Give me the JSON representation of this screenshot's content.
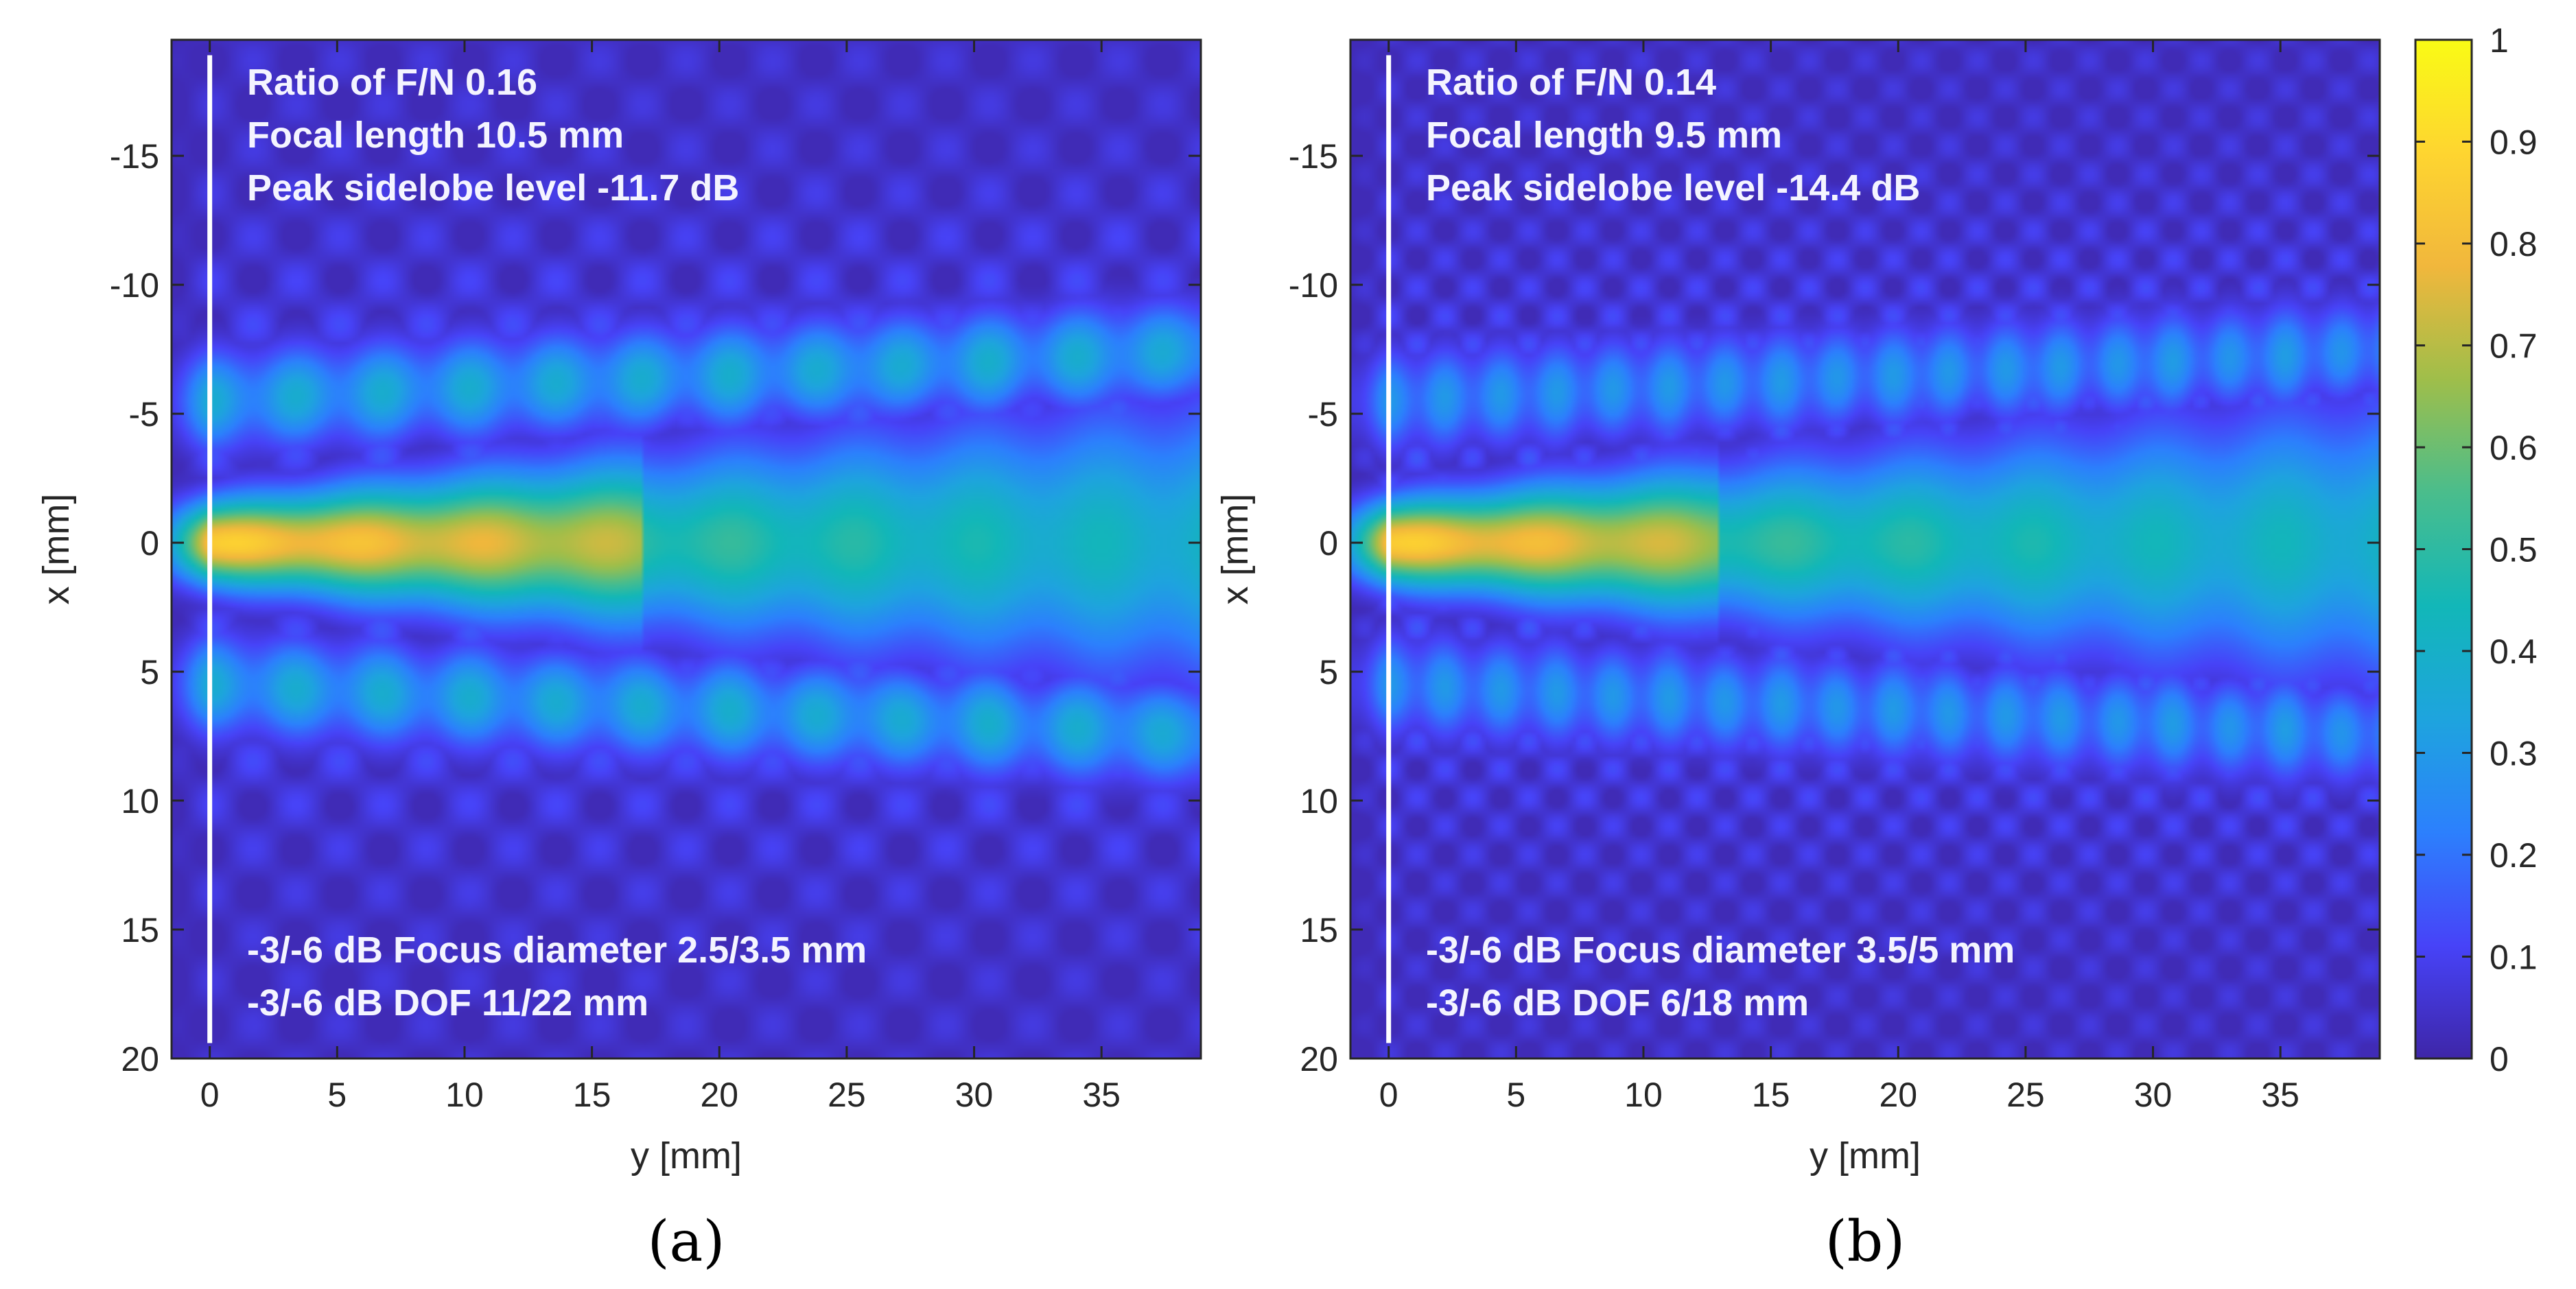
{
  "colormap": {
    "name": "parula",
    "stops": [
      "#3e26a8",
      "#4743f8",
      "#2c80fd",
      "#1ea4de",
      "#12b7b8",
      "#4abd8c",
      "#9fbe4a",
      "#f1b73c",
      "#fed530",
      "#f9fb15"
    ]
  },
  "colorbar": {
    "ticks": [
      "0",
      "0.1",
      "0.2",
      "0.3",
      "0.4",
      "0.5",
      "0.6",
      "0.7",
      "0.8",
      "0.9",
      "1"
    ],
    "range": [
      0,
      1
    ]
  },
  "chart_data": [
    {
      "type": "heatmap",
      "panel_label": "(a)",
      "xlabel": "y [mm]",
      "ylabel": "x [mm]",
      "x_range": [
        -1.5,
        38.9
      ],
      "y_range": [
        20,
        -19.5
      ],
      "xticks": [
        0,
        5,
        10,
        15,
        20,
        25,
        30,
        35
      ],
      "xtick_labels": [
        "0",
        "5",
        "10",
        "15",
        "20",
        "25",
        "30",
        "35"
      ],
      "yticks": [
        -15,
        -10,
        -5,
        0,
        5,
        10,
        15,
        20
      ],
      "ytick_labels": [
        "-15",
        "-10",
        "-5",
        "0",
        "5",
        "10",
        "15",
        "20"
      ],
      "value_range": [
        0,
        1
      ],
      "peak_value": 0.85,
      "focus_extent_mm": 17,
      "side_lobe": 0.38,
      "lobe_spacing_mm": 3.4,
      "annotations_top": [
        "Ratio of F/N 0.16",
        "Focal length 10.5 mm",
        "Peak sidelobe level -11.7 dB"
      ],
      "annotations_bottom": [
        "-3/-6 dB Focus diameter 2.5/3.5 mm",
        "-3/-6 dB DOF 11/22 mm"
      ]
    },
    {
      "type": "heatmap",
      "panel_label": "(b)",
      "xlabel": "y [mm]",
      "ylabel": "x [mm]",
      "x_range": [
        -1.5,
        38.9
      ],
      "y_range": [
        20,
        -19.5
      ],
      "xticks": [
        0,
        5,
        10,
        15,
        20,
        25,
        30,
        35
      ],
      "xtick_labels": [
        "0",
        "5",
        "10",
        "15",
        "20",
        "25",
        "30",
        "35"
      ],
      "yticks": [
        -15,
        -10,
        -5,
        0,
        5,
        10,
        15,
        20
      ],
      "ytick_labels": [
        "-15",
        "-10",
        "-5",
        "0",
        "5",
        "10",
        "15",
        "20"
      ],
      "value_range": [
        0,
        1
      ],
      "peak_value": 0.85,
      "focus_extent_mm": 13,
      "side_lobe": 0.3,
      "lobe_spacing_mm": 2.2,
      "annotations_top": [
        "Ratio of F/N 0.14",
        "Focal length 9.5 mm",
        "Peak sidelobe level -14.4 dB"
      ],
      "annotations_bottom": [
        "-3/-6 dB Focus diameter 3.5/5 mm",
        "-3/-6 dB DOF 6/18 mm"
      ]
    }
  ]
}
